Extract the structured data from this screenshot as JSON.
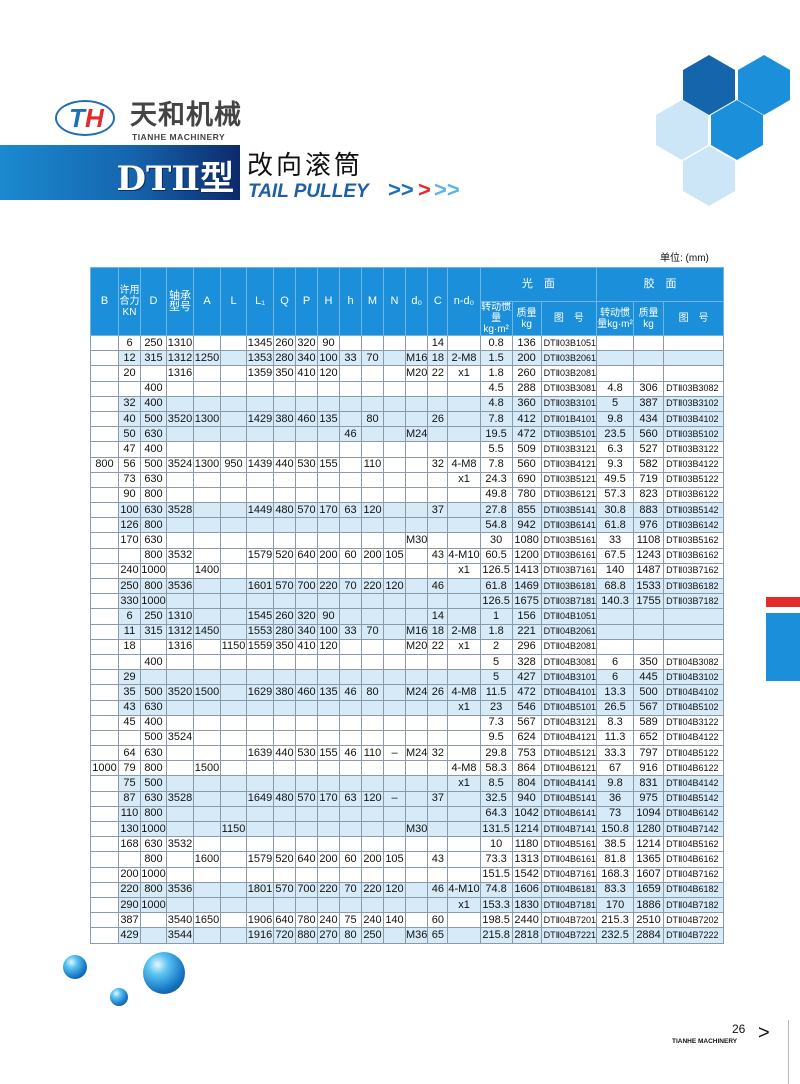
{
  "brand": {
    "name_cn": "天和机械",
    "name_en": "TIANHE MACHINERY",
    "logo_text": "TH"
  },
  "title": {
    "model": "DTⅡ型",
    "name_cn": "改向滚筒",
    "name_en": "TAIL PULLEY"
  },
  "unit": "单位: (mm)",
  "colors": {
    "header_blue": "#1b8fd9",
    "row_shade": "#d6eaf8",
    "accent_red": "#e22b2b",
    "band_dark": "#0d2a6b"
  },
  "table": {
    "headers": {
      "B": "B",
      "kn": "许用合力KN",
      "D": "D",
      "bearing": "轴承型号",
      "A": "A",
      "L": "L",
      "L1": "L₁",
      "Q": "Q",
      "P": "P",
      "H": "H",
      "h": "h",
      "M": "M",
      "N": "N",
      "d0": "d₀",
      "C": "C",
      "nd": "n-d₀",
      "smooth": "光　面",
      "rubber": "胶　面",
      "inertia": "转动惯量kg·m²",
      "mass": "质量kg",
      "drawing": "图　号"
    },
    "rows": [
      {
        "band": false,
        "cells": [
          "",
          "6",
          "250",
          "1310",
          "",
          "",
          "1345",
          "260",
          "320",
          "90",
          "",
          "",
          "",
          "",
          "14",
          "",
          "0.8",
          "136",
          "DTⅡ03B1051",
          "",
          "",
          ""
        ]
      },
      {
        "band": true,
        "cells": [
          "",
          "12",
          "315",
          "1312",
          "1250",
          "",
          "1353",
          "280",
          "340",
          "100",
          "33",
          "70",
          "",
          "M16",
          "18",
          "2-M8",
          "1.5",
          "200",
          "DTⅡ03B2061",
          "",
          "",
          ""
        ]
      },
      {
        "band": false,
        "cells": [
          "",
          "20",
          "",
          "1316",
          "",
          "",
          "1359",
          "350",
          "410",
          "120",
          "",
          "",
          "",
          "M20",
          "22",
          "x1",
          "1.8",
          "260",
          "DTⅡ03B2081",
          "",
          "",
          ""
        ]
      },
      {
        "band": false,
        "cells": [
          "",
          "",
          "400",
          "",
          "",
          "",
          "",
          "",
          "",
          "",
          "",
          "",
          "",
          "",
          "",
          "",
          "4.5",
          "288",
          "DTⅡ03B3081",
          "4.8",
          "306",
          "DTⅡ03B3082"
        ]
      },
      {
        "band": true,
        "cells": [
          "",
          "32",
          "400",
          "",
          "",
          "",
          "",
          "",
          "",
          "",
          "",
          "",
          "",
          "",
          "",
          "",
          "4.8",
          "360",
          "DTⅡ03B3101",
          "5",
          "387",
          "DTⅡ03B3102"
        ]
      },
      {
        "band": true,
        "cells": [
          "",
          "40",
          "500",
          "3520",
          "1300",
          "",
          "1429",
          "380",
          "460",
          "135",
          "",
          "80",
          "",
          "",
          "26",
          "",
          "7.8",
          "412",
          "DTⅡ01B4101",
          "9.8",
          "434",
          "DTⅡ03B4102"
        ]
      },
      {
        "band": true,
        "cells": [
          "",
          "50",
          "630",
          "",
          "",
          "",
          "",
          "",
          "",
          "",
          "46",
          "",
          "",
          "M24",
          "",
          "",
          "19.5",
          "472",
          "DTⅡ03B5101",
          "23.5",
          "560",
          "DTⅡ03B5102"
        ]
      },
      {
        "band": false,
        "cells": [
          "",
          "47",
          "400",
          "",
          "",
          "",
          "",
          "",
          "",
          "",
          "",
          "",
          "",
          "",
          "",
          "",
          "5.5",
          "509",
          "DTⅡ03B3121",
          "6.3",
          "527",
          "DTⅡ03B3122"
        ]
      },
      {
        "band": false,
        "cells": [
          "800",
          "56",
          "500",
          "3524",
          "1300",
          "950",
          "1439",
          "440",
          "530",
          "155",
          "",
          "110",
          "",
          "",
          "32",
          "4-M8",
          "7.8",
          "560",
          "DTⅡ03B4121",
          "9.3",
          "582",
          "DTⅡ03B4122"
        ]
      },
      {
        "band": false,
        "cells": [
          "",
          "73",
          "630",
          "",
          "",
          "",
          "",
          "",
          "",
          "",
          "",
          "",
          "",
          "",
          "",
          "x1",
          "24.3",
          "690",
          "DTⅡ03B5121",
          "49.5",
          "719",
          "DTⅡ03B5122"
        ]
      },
      {
        "band": false,
        "cells": [
          "",
          "90",
          "800",
          "",
          "",
          "",
          "",
          "",
          "",
          "",
          "",
          "",
          "",
          "",
          "",
          "",
          "49.8",
          "780",
          "DTⅡ03B6121",
          "57.3",
          "823",
          "DTⅡ03B6122"
        ]
      },
      {
        "band": true,
        "cells": [
          "",
          "100",
          "630",
          "3528",
          "",
          "",
          "1449",
          "480",
          "570",
          "170",
          "63",
          "120",
          "",
          "",
          "37",
          "",
          "27.8",
          "855",
          "DTⅡ03B5141",
          "30.8",
          "883",
          "DTⅡ03B5142"
        ]
      },
      {
        "band": true,
        "cells": [
          "",
          "126",
          "800",
          "",
          "",
          "",
          "",
          "",
          "",
          "",
          "",
          "",
          "",
          "",
          "",
          "",
          "54.8",
          "942",
          "DTⅡ03B6141",
          "61.8",
          "976",
          "DTⅡ03B6142"
        ]
      },
      {
        "band": false,
        "cells": [
          "",
          "170",
          "630",
          "",
          "",
          "",
          "",
          "",
          "",
          "",
          "",
          "",
          "",
          "M30",
          "",
          "",
          "30",
          "1080",
          "DTⅡ03B5161",
          "33",
          "1108",
          "DTⅡ03B5162"
        ]
      },
      {
        "band": false,
        "cells": [
          "",
          "",
          "800",
          "3532",
          "",
          "",
          "1579",
          "520",
          "640",
          "200",
          "60",
          "200",
          "105",
          "",
          "43",
          "4-M10",
          "60.5",
          "1200",
          "DTⅡ03B6161",
          "67.5",
          "1243",
          "DTⅡ03B6162"
        ]
      },
      {
        "band": false,
        "cells": [
          "",
          "240",
          "1000",
          "",
          "1400",
          "",
          "",
          "",
          "",
          "",
          "",
          "",
          "",
          "",
          "",
          "x1",
          "126.5",
          "1413",
          "DTⅡ03B7161",
          "140",
          "1487",
          "DTⅡ03B7162"
        ]
      },
      {
        "band": true,
        "cells": [
          "",
          "250",
          "800",
          "3536",
          "",
          "",
          "1601",
          "570",
          "700",
          "220",
          "70",
          "220",
          "120",
          "",
          "46",
          "",
          "61.8",
          "1469",
          "DTⅡ03B6181",
          "68.8",
          "1533",
          "DTⅡ03B6182"
        ]
      },
      {
        "band": true,
        "cells": [
          "",
          "330",
          "1000",
          "",
          "",
          "",
          "",
          "",
          "",
          "",
          "",
          "",
          "",
          "",
          "",
          "",
          "126.5",
          "1675",
          "DTⅡ03B7181",
          "140.3",
          "1755",
          "DTⅡ03B7182"
        ]
      },
      {
        "band": true,
        "cells": [
          "",
          "6",
          "250",
          "1310",
          "",
          "",
          "1545",
          "260",
          "320",
          "90",
          "",
          "",
          "",
          "",
          "14",
          "",
          "1",
          "156",
          "DTⅡ04B1051",
          "",
          "",
          ""
        ]
      },
      {
        "band": true,
        "cells": [
          "",
          "11",
          "315",
          "1312",
          "1450",
          "",
          "1553",
          "280",
          "340",
          "100",
          "33",
          "70",
          "",
          "M16",
          "18",
          "2-M8",
          "1.8",
          "221",
          "DTⅡ04B2061",
          "",
          "",
          ""
        ]
      },
      {
        "band": false,
        "cells": [
          "",
          "18",
          "",
          "1316",
          "",
          "1150",
          "1559",
          "350",
          "410",
          "120",
          "",
          "",
          "",
          "M20",
          "22",
          "x1",
          "2",
          "296",
          "DTⅡ04B2081",
          "",
          "",
          ""
        ]
      },
      {
        "band": false,
        "cells": [
          "",
          "",
          "400",
          "",
          "",
          "",
          "",
          "",
          "",
          "",
          "",
          "",
          "",
          "",
          "",
          "",
          "5",
          "328",
          "DTⅡ04B3081",
          "6",
          "350",
          "DTⅡ04B3082"
        ]
      },
      {
        "band": true,
        "cells": [
          "",
          "29",
          "",
          "",
          "",
          "",
          "",
          "",
          "",
          "",
          "",
          "",
          "",
          "",
          "",
          "",
          "5",
          "427",
          "DTⅡ04B3101",
          "6",
          "445",
          "DTⅡ04B3102"
        ]
      },
      {
        "band": true,
        "cells": [
          "",
          "35",
          "500",
          "3520",
          "1500",
          "",
          "1629",
          "380",
          "460",
          "135",
          "46",
          "80",
          "",
          "M24",
          "26",
          "4-M8",
          "11.5",
          "472",
          "DTⅡ04B4101",
          "13.3",
          "500",
          "DTⅡ04B4102"
        ]
      },
      {
        "band": true,
        "cells": [
          "",
          "43",
          "630",
          "",
          "",
          "",
          "",
          "",
          "",
          "",
          "",
          "",
          "",
          "",
          "",
          "x1",
          "23",
          "546",
          "DTⅡ04B5101",
          "26.5",
          "567",
          "DTⅡ04B5102"
        ]
      },
      {
        "band": false,
        "cells": [
          "",
          "45",
          "400",
          "",
          "",
          "",
          "",
          "",
          "",
          "",
          "",
          "",
          "",
          "",
          "",
          "",
          "7.3",
          "567",
          "DTⅡ04B3121",
          "8.3",
          "589",
          "DTⅡ04B3122"
        ]
      },
      {
        "band": false,
        "cells": [
          "",
          "",
          "500",
          "3524",
          "",
          "",
          "",
          "",
          "",
          "",
          "",
          "",
          "",
          "",
          "",
          "",
          "9.5",
          "624",
          "DTⅡ04B4121",
          "11.3",
          "652",
          "DTⅡ04B4122"
        ]
      },
      {
        "band": false,
        "cells": [
          "",
          "64",
          "630",
          "",
          "",
          "",
          "1639",
          "440",
          "530",
          "155",
          "46",
          "110",
          "–",
          "M24",
          "32",
          "",
          "29.8",
          "753",
          "DTⅡ04B5121",
          "33.3",
          "797",
          "DTⅡ04B5122"
        ]
      },
      {
        "band": false,
        "cells": [
          "1000",
          "79",
          "800",
          "",
          "1500",
          "",
          "",
          "",
          "",
          "",
          "",
          "",
          "",
          "",
          "",
          "4-M8",
          "58.3",
          "864",
          "DTⅡ04B6121",
          "67",
          "916",
          "DTⅡ04B6122"
        ]
      },
      {
        "band": true,
        "cells": [
          "",
          "75",
          "500",
          "",
          "",
          "",
          "",
          "",
          "",
          "",
          "",
          "",
          "",
          "",
          "",
          "x1",
          "8.5",
          "804",
          "DTⅡ04B4141",
          "9.8",
          "831",
          "DTⅡ04B4142"
        ]
      },
      {
        "band": true,
        "cells": [
          "",
          "87",
          "630",
          "3528",
          "",
          "",
          "1649",
          "480",
          "570",
          "170",
          "63",
          "120",
          "–",
          "",
          "37",
          "",
          "32.5",
          "940",
          "DTⅡ04B5141",
          "36",
          "975",
          "DTⅡ04B5142"
        ]
      },
      {
        "band": true,
        "cells": [
          "",
          "110",
          "800",
          "",
          "",
          "",
          "",
          "",
          "",
          "",
          "",
          "",
          "",
          "",
          "",
          "",
          "64.3",
          "1042",
          "DTⅡ04B6141",
          "73",
          "1094",
          "DTⅡ04B6142"
        ]
      },
      {
        "band": true,
        "cells": [
          "",
          "130",
          "1000",
          "",
          "",
          "1150",
          "",
          "",
          "",
          "",
          "",
          "",
          "",
          "M30",
          "",
          "",
          "131.5",
          "1214",
          "DTⅡ04B7141",
          "150.8",
          "1280",
          "DTⅡ04B7142"
        ]
      },
      {
        "band": false,
        "cells": [
          "",
          "168",
          "630",
          "3532",
          "",
          "",
          "",
          "",
          "",
          "",
          "",
          "",
          "",
          "",
          "",
          "",
          "10",
          "1180",
          "DTⅡ04B5161",
          "38.5",
          "1214",
          "DTⅡ04B5162"
        ]
      },
      {
        "band": false,
        "cells": [
          "",
          "",
          "800",
          "",
          "1600",
          "",
          "1579",
          "520",
          "640",
          "200",
          "60",
          "200",
          "105",
          "",
          "43",
          "",
          "73.3",
          "1313",
          "DTⅡ04B6161",
          "81.8",
          "1365",
          "DTⅡ04B6162"
        ]
      },
      {
        "band": false,
        "cells": [
          "",
          "200",
          "1000",
          "",
          "",
          "",
          "",
          "",
          "",
          "",
          "",
          "",
          "",
          "",
          "",
          "",
          "151.5",
          "1542",
          "DTⅡ04B7161",
          "168.3",
          "1607",
          "DTⅡ04B7162"
        ]
      },
      {
        "band": true,
        "cells": [
          "",
          "220",
          "800",
          "3536",
          "",
          "",
          "1801",
          "570",
          "700",
          "220",
          "70",
          "220",
          "120",
          "",
          "46",
          "4-M10",
          "74.8",
          "1606",
          "DTⅡ04B6181",
          "83.3",
          "1659",
          "DTⅡ04B6182"
        ]
      },
      {
        "band": true,
        "cells": [
          "",
          "290",
          "1000",
          "",
          "",
          "",
          "",
          "",
          "",
          "",
          "",
          "",
          "",
          "",
          "",
          "x1",
          "153.3",
          "1830",
          "DTⅡ04B7181",
          "170",
          "1886",
          "DTⅡ04B7182"
        ]
      },
      {
        "band": false,
        "cells": [
          "",
          "387",
          "",
          "3540",
          "1650",
          "",
          "1906",
          "640",
          "780",
          "240",
          "75",
          "240",
          "140",
          "",
          "60",
          "",
          "198.5",
          "2440",
          "DTⅡ04B7201",
          "215.3",
          "2510",
          "DTⅡ04B7202"
        ]
      },
      {
        "band": true,
        "cells": [
          "",
          "429",
          "",
          "3544",
          "",
          "",
          "1916",
          "720",
          "880",
          "270",
          "80",
          "250",
          "",
          "M36",
          "65",
          "",
          "215.8",
          "2818",
          "DTⅡ04B7221",
          "232.5",
          "2884",
          "DTⅡ04B7222"
        ]
      }
    ]
  },
  "footer": {
    "page": "26",
    "brand": "TIANHE MACHINERY"
  }
}
